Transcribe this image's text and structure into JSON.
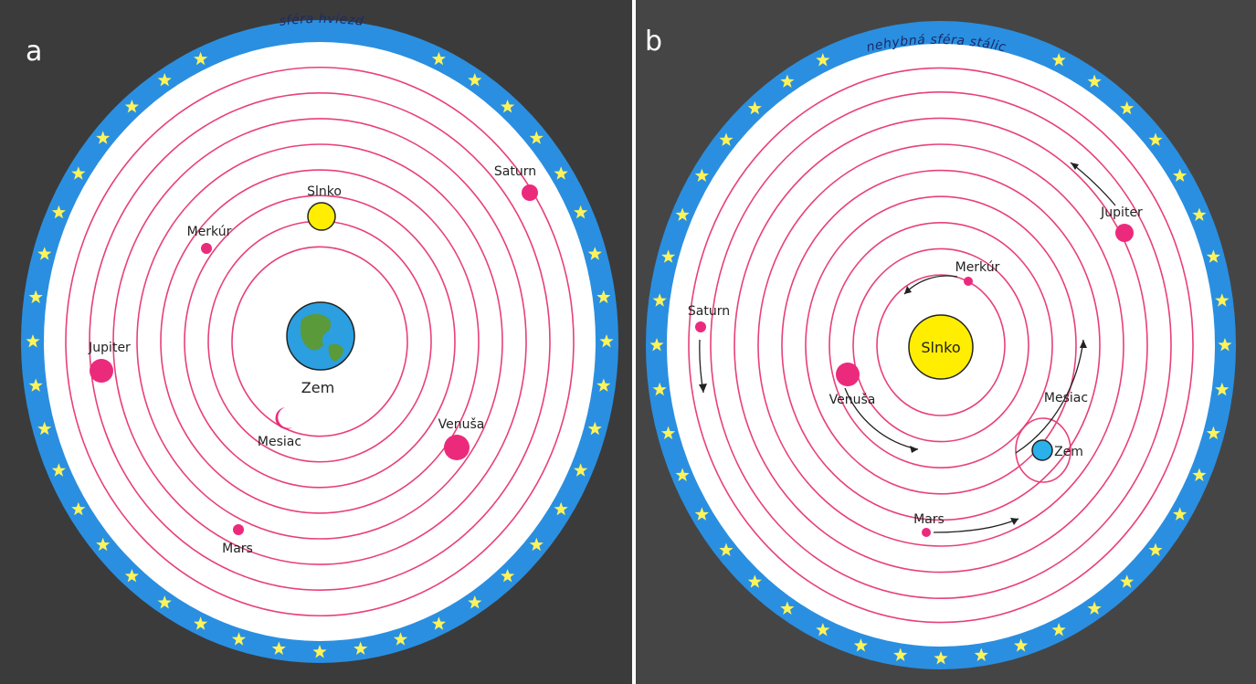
{
  "colors": {
    "background": "#3b3b3b",
    "sky_band": "#2a8fe0",
    "orbit": "#e8407a",
    "planet": "#ec2a7c",
    "sun": "#ffee00",
    "earth_ocean": "#2b9fe0",
    "earth_land": "#5a9a3a",
    "star": "#fff35a"
  },
  "panel_a": {
    "letter": "a",
    "rim_label": "sféra hviezd",
    "bodies": {
      "sun": "Slnko",
      "earth": "Zem",
      "moon": "Mesiac",
      "mercury": "Merkúr",
      "venus": "Venuša",
      "mars": "Mars",
      "jupiter": "Jupiter",
      "saturn": "Saturn"
    }
  },
  "panel_b": {
    "letter": "b",
    "rim_label": "nehybná sféra stálic",
    "bodies": {
      "sun": "Slnko",
      "mercury": "Merkúr",
      "venus": "Venuša",
      "moon": "Mesiac",
      "earth": "Zem",
      "mars": "Mars",
      "jupiter": "Jupiter",
      "saturn": "Saturn"
    }
  }
}
